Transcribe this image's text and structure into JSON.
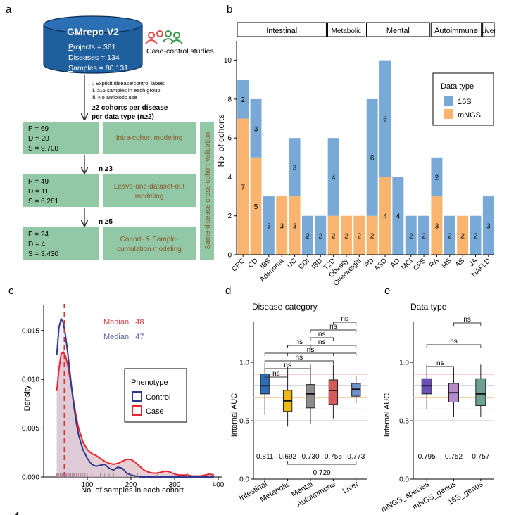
{
  "panel_labels": {
    "a": "a",
    "b": "b",
    "c": "c",
    "d": "d",
    "e": "e",
    "f": "f"
  },
  "colors": {
    "c16s": "#78a9d7",
    "mngs": "#f9b46f",
    "green": "#92c8a5",
    "green_text": "#8a5a2c",
    "blue_db": "#1f5f9e",
    "median_case": "#e0393e",
    "median_ctrl": "#5762a6",
    "control": "#2e3b8a",
    "case": "#e8262b",
    "fill_case": "#ddb8c2",
    "box_int": "#2f6db6",
    "box_met": "#f0b917",
    "box_men": "#8c8c8c",
    "box_auto": "#d55a5a",
    "box_liv": "#6d8fcf",
    "box_ms": "#6a4fb4",
    "box_mg": "#b58bc9",
    "box_16g": "#6f9e93",
    "ref_red": "#e84a5f",
    "ref_blue": "#8590c8",
    "ref_orange": "#f6c28f",
    "ref_gray": "#cccccc"
  },
  "panel_a": {
    "db_title": "GMrepo V2",
    "db_lines": [
      {
        "initial": "P",
        "rest": "rojects = 361"
      },
      {
        "initial": "D",
        "rest": "iseases = 134"
      },
      {
        "initial": "S",
        "rest": "amples = 80,131"
      }
    ],
    "case_control_label": "Case-control studies",
    "criteria": [
      "i. Explicit disease/control labels",
      "ii. ≥15 samples in each group",
      "iii. No antibiotic use"
    ],
    "cohort_rule": [
      "≥2 cohorts per disease",
      "per data type (n≥2)"
    ],
    "steps": [
      {
        "p": "P = 69",
        "d": "D = 20",
        "s": "S = 9,708",
        "method": [
          "Intra-cohort modeling"
        ]
      },
      {
        "p": "P =  49",
        "d": "D = 11",
        "s": "S =  6,281",
        "method": [
          "Leave-one-dataset-out",
          "modeling"
        ]
      },
      {
        "p": "P =  24",
        "d": "D = 4",
        "s": "S = 3,430",
        "method": [
          "Cohort- & Sample-",
          "cumulation modeling"
        ]
      }
    ],
    "thresholds": [
      "n ≥3",
      "n ≥5"
    ],
    "side_label": "Same-disease cross-cohort validation"
  },
  "chart_data": [
    {
      "type": "bar",
      "panel": "b",
      "stacked": true,
      "ylabel": "No. of cohorts",
      "ylim": [
        0,
        11
      ],
      "yticks": [
        0,
        2,
        4,
        6,
        8,
        10
      ],
      "groups": [
        {
          "name": "Intestinal",
          "categories": [
            "CRC",
            "CD",
            "IBS",
            "Adenoma",
            "UC",
            "CDI",
            "IBD"
          ]
        },
        {
          "name": "Metabolic",
          "categories": [
            "T2D",
            "Obesity",
            "Overweight"
          ]
        },
        {
          "name": "Mental",
          "categories": [
            "PD",
            "ASD",
            "AD",
            "MCI",
            "CFS"
          ]
        },
        {
          "name": "Autoimmune",
          "categories": [
            "RA",
            "MS",
            "AS",
            "JA"
          ]
        },
        {
          "name": "Liver",
          "categories": [
            "NAFLD"
          ]
        }
      ],
      "categories": [
        "CRC",
        "CD",
        "IBS",
        "Adenoma",
        "UC",
        "CDI",
        "IBD",
        "T2D",
        "Obesity",
        "Overweight",
        "PD",
        "ASD",
        "AD",
        "MCI",
        "CFS",
        "RA",
        "MS",
        "AS",
        "JA",
        "NAFLD"
      ],
      "series": [
        {
          "name": "mNGS",
          "values": [
            7,
            5,
            0,
            3,
            3,
            0,
            0,
            2,
            2,
            2,
            2,
            4,
            0,
            0,
            0,
            3,
            0,
            2,
            0,
            0
          ]
        },
        {
          "name": "16S",
          "values": [
            2,
            3,
            3,
            0,
            3,
            2,
            2,
            4,
            0,
            0,
            6,
            6,
            4,
            2,
            2,
            2,
            2,
            0,
            2,
            3
          ]
        }
      ],
      "segment_labels": [
        {
          "category": "CRC",
          "labels": [
            "7",
            "2"
          ]
        },
        {
          "category": "CD",
          "labels": [
            "5",
            "3"
          ]
        },
        {
          "category": "IBS",
          "labels": [
            "",
            "3"
          ]
        },
        {
          "category": "Adenoma",
          "labels": [
            "3",
            ""
          ]
        },
        {
          "category": "UC",
          "labels": [
            "3",
            "3"
          ]
        },
        {
          "category": "CDI",
          "labels": [
            "",
            "2"
          ]
        },
        {
          "category": "IBD",
          "labels": [
            "",
            "2"
          ]
        },
        {
          "category": "T2D",
          "labels": [
            "2",
            "4"
          ]
        },
        {
          "category": "Obesity",
          "labels": [
            "2",
            ""
          ]
        },
        {
          "category": "Overweight",
          "labels": [
            "2",
            ""
          ]
        },
        {
          "category": "PD",
          "labels": [
            "2",
            "6"
          ]
        },
        {
          "category": "ASD",
          "labels": [
            "4",
            "6"
          ]
        },
        {
          "category": "AD",
          "labels": [
            "",
            "4"
          ]
        },
        {
          "category": "MCI",
          "labels": [
            "",
            "2"
          ]
        },
        {
          "category": "CFS",
          "labels": [
            "",
            "2"
          ]
        },
        {
          "category": "RA",
          "labels": [
            "3",
            "2"
          ]
        },
        {
          "category": "MS",
          "labels": [
            "",
            "2"
          ]
        },
        {
          "category": "AS",
          "labels": [
            "2",
            ""
          ]
        },
        {
          "category": "JA",
          "labels": [
            "",
            "2"
          ]
        },
        {
          "category": "NAFLD",
          "labels": [
            "",
            "3"
          ]
        }
      ],
      "legend": {
        "title": "Data type",
        "items": [
          "16S",
          "mNGS"
        ],
        "position": "right"
      }
    },
    {
      "type": "line",
      "panel": "c",
      "ylabel": "Density",
      "xlabel": "No. of samples in each cohort",
      "xlim": [
        0,
        400
      ],
      "ylim": [
        0,
        0.017
      ],
      "xticks": [
        100,
        200,
        300,
        400
      ],
      "yticks": [
        0.0,
        0.005,
        0.01,
        0.015
      ],
      "ytick_labels": [
        "0.000",
        "0.005",
        "0.010",
        "0.015"
      ],
      "x": [
        30,
        35,
        40,
        45,
        50,
        55,
        60,
        65,
        70,
        75,
        80,
        90,
        100,
        110,
        120,
        130,
        140,
        150,
        160,
        170,
        180,
        190,
        200,
        210,
        220,
        230,
        240,
        250,
        260,
        270,
        280,
        290,
        300,
        310,
        320,
        330,
        340,
        350,
        360,
        370,
        380,
        390
      ],
      "series": [
        {
          "name": "Control",
          "values": [
            0.0125,
            0.0153,
            0.0162,
            0.0158,
            0.0145,
            0.0128,
            0.0108,
            0.0088,
            0.007,
            0.0055,
            0.0043,
            0.0028,
            0.0019,
            0.0013,
            0.0011,
            0.0012,
            0.0013,
            0.0009,
            0.0007,
            0.001,
            0.0009,
            0.0004,
            0.0002,
            0.0001,
            0.0,
            0.0,
            0.0,
            0.0,
            0.0,
            0.0,
            0.0,
            0.0,
            0.0,
            0.0,
            0.0,
            0.0,
            0.0,
            0.0,
            0.0,
            0.0,
            0.0,
            0.0
          ]
        },
        {
          "name": "Case",
          "values": [
            0.0088,
            0.011,
            0.0126,
            0.0128,
            0.0124,
            0.0115,
            0.0102,
            0.0088,
            0.0074,
            0.0061,
            0.005,
            0.0036,
            0.0028,
            0.0024,
            0.0022,
            0.0019,
            0.0016,
            0.0014,
            0.0013,
            0.0014,
            0.0016,
            0.0018,
            0.0018,
            0.0015,
            0.0011,
            0.0007,
            0.0005,
            0.0004,
            0.0004,
            0.0005,
            0.0006,
            0.0005,
            0.0003,
            0.0002,
            0.0002,
            0.0002,
            0.0001,
            0.0001,
            0.0001,
            0.0002,
            0.0003,
            0.0002
          ]
        }
      ],
      "medians": [
        {
          "label": "Median : 48",
          "value": 48
        },
        {
          "label": "Median : 47",
          "value": 47
        }
      ],
      "legend": {
        "title": "Phenotype",
        "items": [
          "Control",
          "Case"
        ],
        "position": "right"
      }
    },
    {
      "type": "box",
      "panel": "d",
      "title": "Disease category",
      "ylabel": "Internal AUC",
      "ylim": [
        0,
        1.35
      ],
      "yticks": [
        0.0,
        0.5,
        1.0
      ],
      "ytick_labels": [
        "0.0",
        "0.5",
        "1.0"
      ],
      "categories": [
        "Intestinal",
        "Metabolic",
        "Mental",
        "Autoimmune",
        "Liver"
      ],
      "boxes": [
        {
          "q1": 0.73,
          "median": 0.8,
          "q3": 0.9,
          "lo": 0.55,
          "hi": 0.99
        },
        {
          "q1": 0.58,
          "median": 0.67,
          "q3": 0.76,
          "lo": 0.45,
          "hi": 0.96
        },
        {
          "q1": 0.61,
          "median": 0.73,
          "q3": 0.81,
          "lo": 0.47,
          "hi": 0.98
        },
        {
          "q1": 0.64,
          "median": 0.76,
          "q3": 0.85,
          "lo": 0.52,
          "hi": 0.98
        },
        {
          "q1": 0.71,
          "median": 0.77,
          "q3": 0.82,
          "lo": 0.65,
          "hi": 0.88
        }
      ],
      "mean_labels": [
        "0.811",
        "0.692",
        "0.730",
        "0.755",
        "0.773"
      ],
      "overall_label": "0.729",
      "ref_lines": [
        0.9,
        0.8,
        0.7,
        0.6,
        0.5
      ],
      "comparisons": [
        {
          "from": 0,
          "to": 1,
          "label": "ns"
        },
        {
          "from": 0,
          "to": 2,
          "label": "ns"
        },
        {
          "from": 0,
          "to": 3,
          "label": "ns"
        },
        {
          "from": 0,
          "to": 4,
          "label": "ns"
        },
        {
          "from": 1,
          "to": 2,
          "label": "ns"
        },
        {
          "from": 1,
          "to": 3,
          "label": "ns"
        },
        {
          "from": 1,
          "to": 4,
          "label": "ns"
        },
        {
          "from": 2,
          "to": 3,
          "label": "ns"
        },
        {
          "from": 2,
          "to": 4,
          "label": "ns"
        },
        {
          "from": 3,
          "to": 4,
          "label": "ns"
        }
      ]
    },
    {
      "type": "box",
      "panel": "e",
      "title": "Data type",
      "ylabel": "Internal AUC",
      "ylim": [
        0,
        1.35
      ],
      "yticks": [
        0.0,
        0.5,
        1.0
      ],
      "ytick_labels": [
        "0.0",
        "0.5",
        "1.0"
      ],
      "categories": [
        "mNGS_species",
        "mNGS_genus",
        "16S_genus"
      ],
      "boxes": [
        {
          "q1": 0.73,
          "median": 0.8,
          "q3": 0.86,
          "lo": 0.6,
          "hi": 0.98
        },
        {
          "q1": 0.66,
          "median": 0.74,
          "q3": 0.82,
          "lo": 0.53,
          "hi": 0.95
        },
        {
          "q1": 0.63,
          "median": 0.73,
          "q3": 0.86,
          "lo": 0.53,
          "hi": 0.98
        }
      ],
      "mean_labels": [
        "0.795",
        "0.752",
        "0.757"
      ],
      "ref_lines": [
        0.9,
        0.8,
        0.7,
        0.6,
        0.5
      ],
      "comparisons": [
        {
          "from": 0,
          "to": 1,
          "label": "ns"
        },
        {
          "from": 0,
          "to": 2,
          "label": "ns"
        },
        {
          "from": 1,
          "to": 2,
          "label": "ns"
        }
      ]
    }
  ]
}
